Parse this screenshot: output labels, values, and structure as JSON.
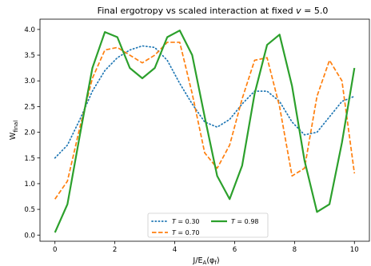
{
  "chart_data": {
    "type": "line",
    "title": "Final ergotropy vs scaled interaction at fixed v = 5.0",
    "xlabel": "J/E_A(φ_f)",
    "ylabel": "W_final",
    "xlim": [
      -0.5,
      10.5
    ],
    "ylim": [
      -0.12,
      4.2
    ],
    "xticks": [
      0,
      2,
      4,
      6,
      8,
      10
    ],
    "yticks": [
      0.0,
      0.5,
      1.0,
      1.5,
      2.0,
      2.5,
      3.0,
      3.5,
      4.0
    ],
    "x": [
      0,
      0.4167,
      0.8333,
      1.25,
      1.6667,
      2.0833,
      2.5,
      2.9167,
      3.3333,
      3.75,
      4.1667,
      4.5833,
      5.0,
      5.4167,
      5.8333,
      6.25,
      6.6667,
      7.0833,
      7.5,
      7.9167,
      8.3333,
      8.75,
      9.1667,
      9.5833,
      10.0
    ],
    "series": [
      {
        "name": "T = 0.30",
        "color": "#1f77b4",
        "style": "dotted",
        "values": [
          1.5,
          1.75,
          2.25,
          2.8,
          3.2,
          3.45,
          3.6,
          3.68,
          3.65,
          3.4,
          2.95,
          2.55,
          2.2,
          2.1,
          2.25,
          2.55,
          2.8,
          2.8,
          2.6,
          2.2,
          1.95,
          2.0,
          2.3,
          2.6,
          2.7
        ]
      },
      {
        "name": "T = 0.70",
        "color": "#ff7f0e",
        "style": "dashed",
        "values": [
          0.7,
          1.05,
          2.1,
          3.05,
          3.6,
          3.65,
          3.5,
          3.35,
          3.5,
          3.75,
          3.75,
          2.75,
          1.6,
          1.3,
          1.75,
          2.65,
          3.4,
          3.45,
          2.5,
          1.15,
          1.3,
          2.7,
          3.4,
          3.0,
          1.2
        ]
      },
      {
        "name": "T = 0.98",
        "color": "#2ca02c",
        "style": "solid",
        "values": [
          0.05,
          0.6,
          1.95,
          3.25,
          3.95,
          3.85,
          3.25,
          3.05,
          3.25,
          3.85,
          3.98,
          3.5,
          2.3,
          1.15,
          0.7,
          1.35,
          2.75,
          3.7,
          3.9,
          2.9,
          1.45,
          0.45,
          0.6,
          1.8,
          3.25
        ]
      }
    ],
    "legend_position": "lower-center"
  }
}
